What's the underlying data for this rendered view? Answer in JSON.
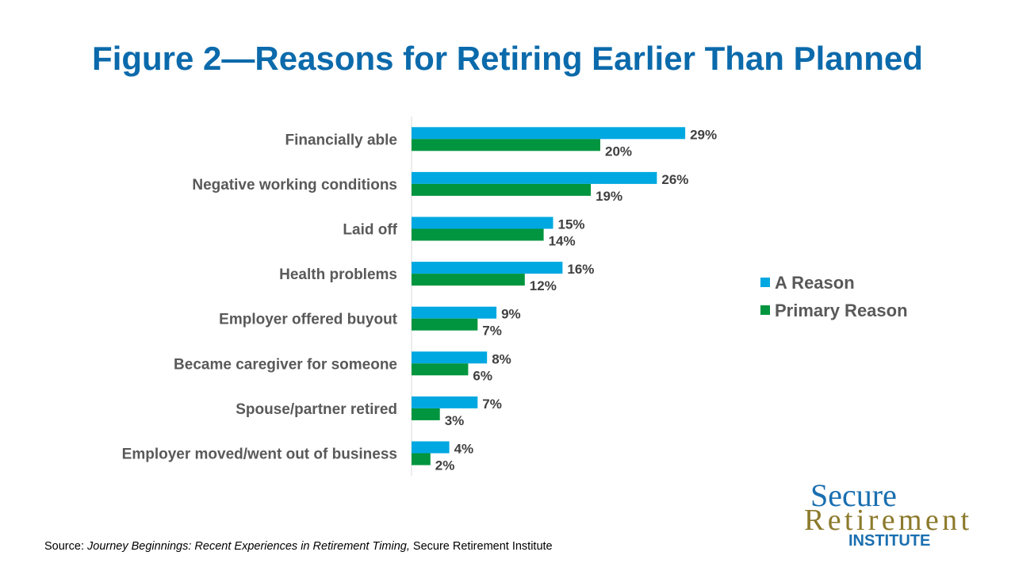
{
  "title": "Figure 2—Reasons for Retiring Earlier Than Planned",
  "chart_data": {
    "type": "bar",
    "orientation": "horizontal",
    "title": "Figure 2—Reasons for Retiring Earlier Than Planned",
    "categories": [
      "Financially able",
      "Negative working conditions",
      "Laid off",
      "Health problems",
      "Employer offered buyout",
      "Became caregiver for someone",
      "Spouse/partner retired",
      "Employer moved/went out of business"
    ],
    "series": [
      {
        "name": "A Reason",
        "color": "#00a8e1",
        "values": [
          29,
          26,
          15,
          16,
          9,
          8,
          7,
          4
        ]
      },
      {
        "name": "Primary Reason",
        "color": "#00953e",
        "values": [
          20,
          19,
          14,
          12,
          7,
          6,
          3,
          2
        ]
      }
    ],
    "unit": "%",
    "xlim": [
      0,
      60
    ],
    "grid": false,
    "legend": "right"
  },
  "source": {
    "prefix": "Source: ",
    "title": "Journey Beginnings: Recent Experiences in Retirement Timing,",
    "publisher": " Secure Retirement Institute"
  },
  "logo": {
    "line1": "Secure",
    "line2": "Retirement",
    "line3": "INSTITUTE"
  }
}
